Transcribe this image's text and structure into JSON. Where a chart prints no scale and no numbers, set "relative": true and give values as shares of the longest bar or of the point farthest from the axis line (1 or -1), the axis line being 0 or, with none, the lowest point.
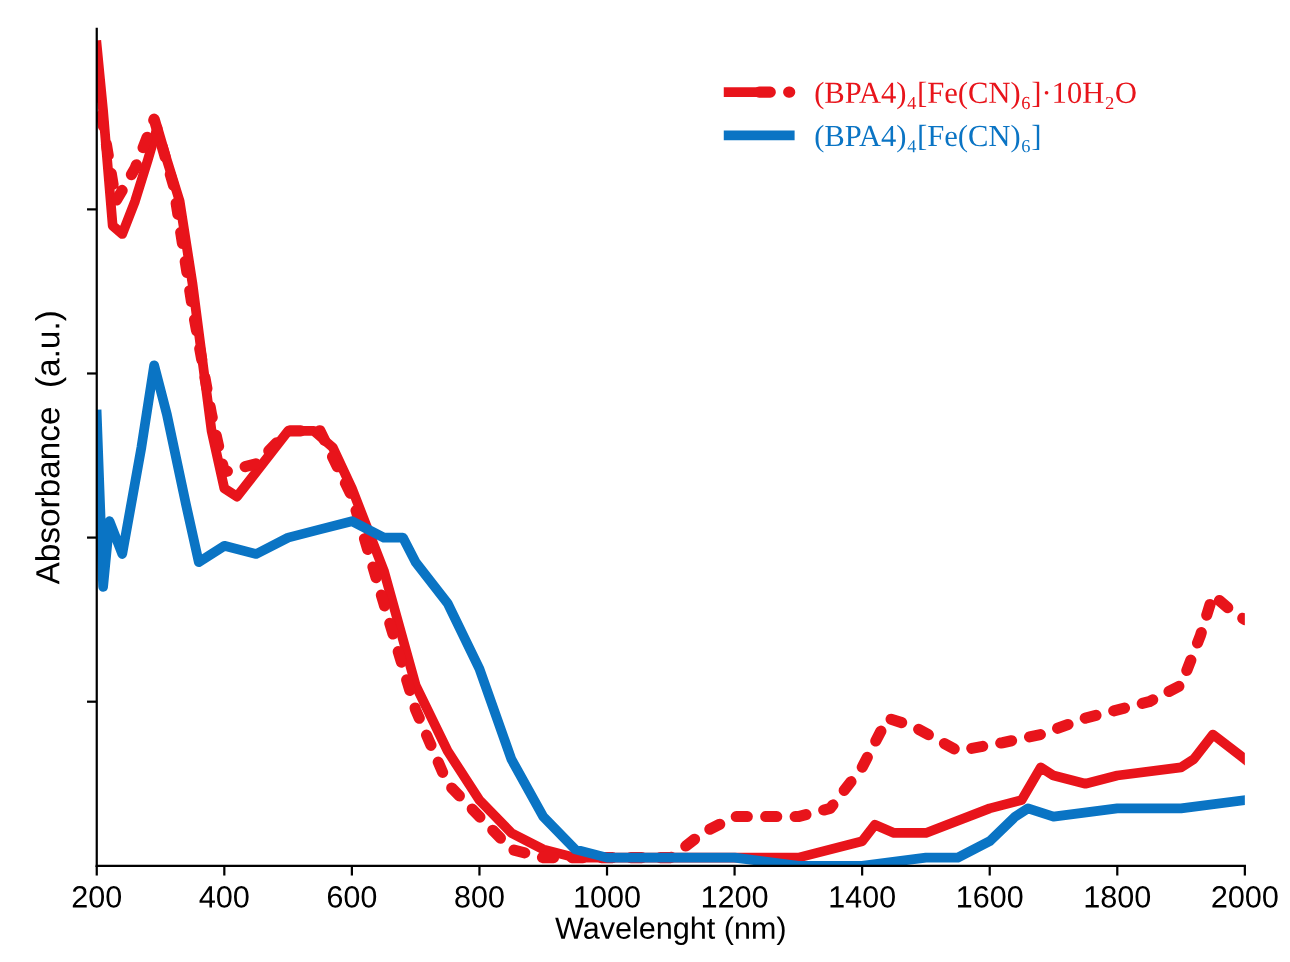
{
  "chart_data": {
    "type": "line",
    "xlabel": "Wavelenght (nm)",
    "ylabel": "Absorbance  (a.u.)",
    "relative": true,
    "xlim": [
      200,
      2000
    ],
    "xticks": [
      200,
      400,
      600,
      800,
      1000,
      1200,
      1400,
      1600,
      1800,
      2000
    ],
    "grid": false,
    "legend": "top right",
    "series": [
      {
        "name": "(BPA4)₄[Fe(CN)₆]·10H₂O",
        "color": "#e8141b",
        "line_style": "solid",
        "x": [
          200,
          210,
          225,
          240,
          260,
          280,
          295,
          310,
          330,
          350,
          380,
          400,
          420,
          450,
          500,
          540,
          570,
          600,
          650,
          700,
          750,
          800,
          850,
          900,
          950,
          1000,
          1100,
          1200,
          1300,
          1400,
          1420,
          1450,
          1500,
          1600,
          1650,
          1680,
          1700,
          1750,
          1800,
          1900,
          1920,
          1950,
          2000
        ],
        "values": [
          1.0,
          0.92,
          0.78,
          0.77,
          0.81,
          0.86,
          0.9,
          0.86,
          0.81,
          0.71,
          0.53,
          0.46,
          0.45,
          0.48,
          0.53,
          0.53,
          0.51,
          0.46,
          0.36,
          0.22,
          0.14,
          0.08,
          0.04,
          0.02,
          0.01,
          0.01,
          0.01,
          0.01,
          0.01,
          0.03,
          0.05,
          0.04,
          0.04,
          0.07,
          0.08,
          0.12,
          0.11,
          0.1,
          0.11,
          0.12,
          0.13,
          0.16,
          0.13
        ]
      },
      {
        "color": "#e8141b",
        "line_style": "dotted",
        "x": [
          200,
          230,
          260,
          290,
          320,
          350,
          380,
          400,
          450,
          500,
          550,
          600,
          650,
          700,
          750,
          800,
          850,
          900,
          1000,
          1100,
          1150,
          1200,
          1300,
          1350,
          1400,
          1440,
          1480,
          1550,
          1620,
          1680,
          1750,
          1850,
          1900,
          1930,
          1950,
          1980,
          2000
        ],
        "values": [
          0.95,
          0.81,
          0.85,
          0.91,
          0.83,
          0.68,
          0.55,
          0.48,
          0.49,
          0.53,
          0.53,
          0.45,
          0.32,
          0.19,
          0.1,
          0.06,
          0.02,
          0.01,
          0.01,
          0.01,
          0.04,
          0.06,
          0.06,
          0.07,
          0.12,
          0.18,
          0.17,
          0.14,
          0.15,
          0.16,
          0.18,
          0.2,
          0.22,
          0.28,
          0.33,
          0.31,
          0.3
        ]
      },
      {
        "name": "(BPA4)₄[Fe(CN)₆]",
        "color": "#0a74c4",
        "line_style": "solid",
        "x": [
          200,
          210,
          220,
          240,
          270,
          290,
          310,
          340,
          360,
          400,
          450,
          500,
          550,
          600,
          650,
          680,
          700,
          750,
          800,
          850,
          900,
          950,
          1000,
          1050,
          1100,
          1200,
          1300,
          1400,
          1500,
          1550,
          1600,
          1640,
          1660,
          1700,
          1800,
          1900,
          2000
        ],
        "values": [
          0.55,
          0.34,
          0.42,
          0.38,
          0.51,
          0.61,
          0.55,
          0.44,
          0.37,
          0.39,
          0.38,
          0.4,
          0.41,
          0.42,
          0.4,
          0.4,
          0.37,
          0.32,
          0.24,
          0.13,
          0.06,
          0.02,
          0.01,
          0.01,
          0.01,
          0.01,
          0.0,
          0.0,
          0.01,
          0.01,
          0.03,
          0.06,
          0.07,
          0.06,
          0.07,
          0.07,
          0.08
        ]
      }
    ]
  }
}
